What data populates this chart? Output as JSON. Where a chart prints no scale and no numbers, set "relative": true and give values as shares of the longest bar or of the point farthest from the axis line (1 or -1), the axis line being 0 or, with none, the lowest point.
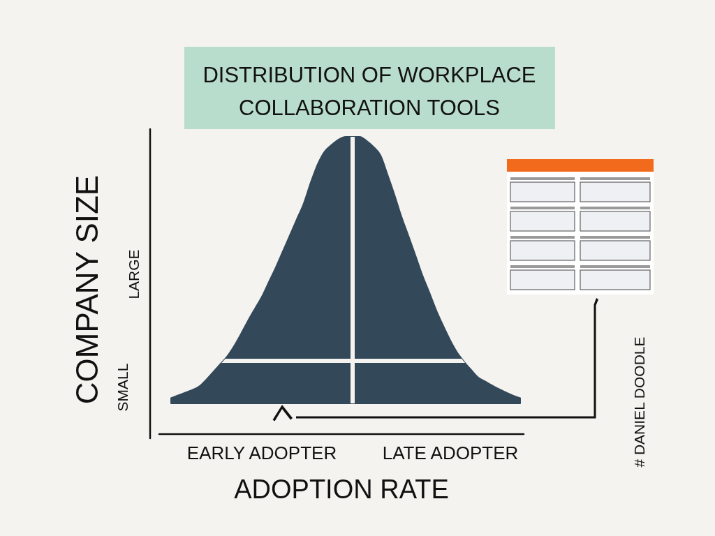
{
  "chart_data": {
    "type": "area",
    "title": "DISTRIBUTION OF WORKPLACE COLLABORATION TOOLS",
    "xlabel": "ADOPTION RATE",
    "ylabel": "COMPANY SIZE",
    "relative": true,
    "categories": [
      null,
      null,
      null,
      null,
      null,
      null,
      null,
      null,
      null,
      null,
      null,
      null,
      null,
      "EARLY ADOPTER",
      null,
      null,
      null,
      null,
      null,
      null,
      null,
      null,
      null,
      null,
      null,
      null,
      null,
      null,
      null,
      null,
      null,
      null,
      null,
      null,
      null,
      null,
      null,
      null,
      null,
      null,
      "LATE ADOPTER",
      null,
      null,
      null,
      null,
      null,
      null,
      null,
      null,
      null,
      null
    ],
    "series": [
      {
        "color": "#33495a",
        "values": [
          0.02,
          0.03,
          0.04,
          0.05,
          0.063,
          0.088,
          0.117,
          0.146,
          0.175,
          0.214,
          0.26,
          0.309,
          0.355,
          0.4,
          0.455,
          0.51,
          0.57,
          0.63,
          0.69,
          0.75,
          0.828,
          0.897,
          0.945,
          0.97,
          0.99,
          1,
          1,
          1,
          0.985,
          0.962,
          0.93,
          0.858,
          0.782,
          0.7,
          0.628,
          0.555,
          0.48,
          0.415,
          0.348,
          0.29,
          0.236,
          0.19,
          0.155,
          0.125,
          0.097,
          0.082,
          0.067,
          0.053,
          0.041,
          0.029,
          0.02
        ]
      }
    ],
    "ref_lines": [
      {
        "axis": "y",
        "value": 0.16,
        "color": "#f5f3ef"
      }
    ],
    "annotations": [
      "SMALL",
      "LARGE",
      "# DANIEL DOODLE"
    ]
  }
}
